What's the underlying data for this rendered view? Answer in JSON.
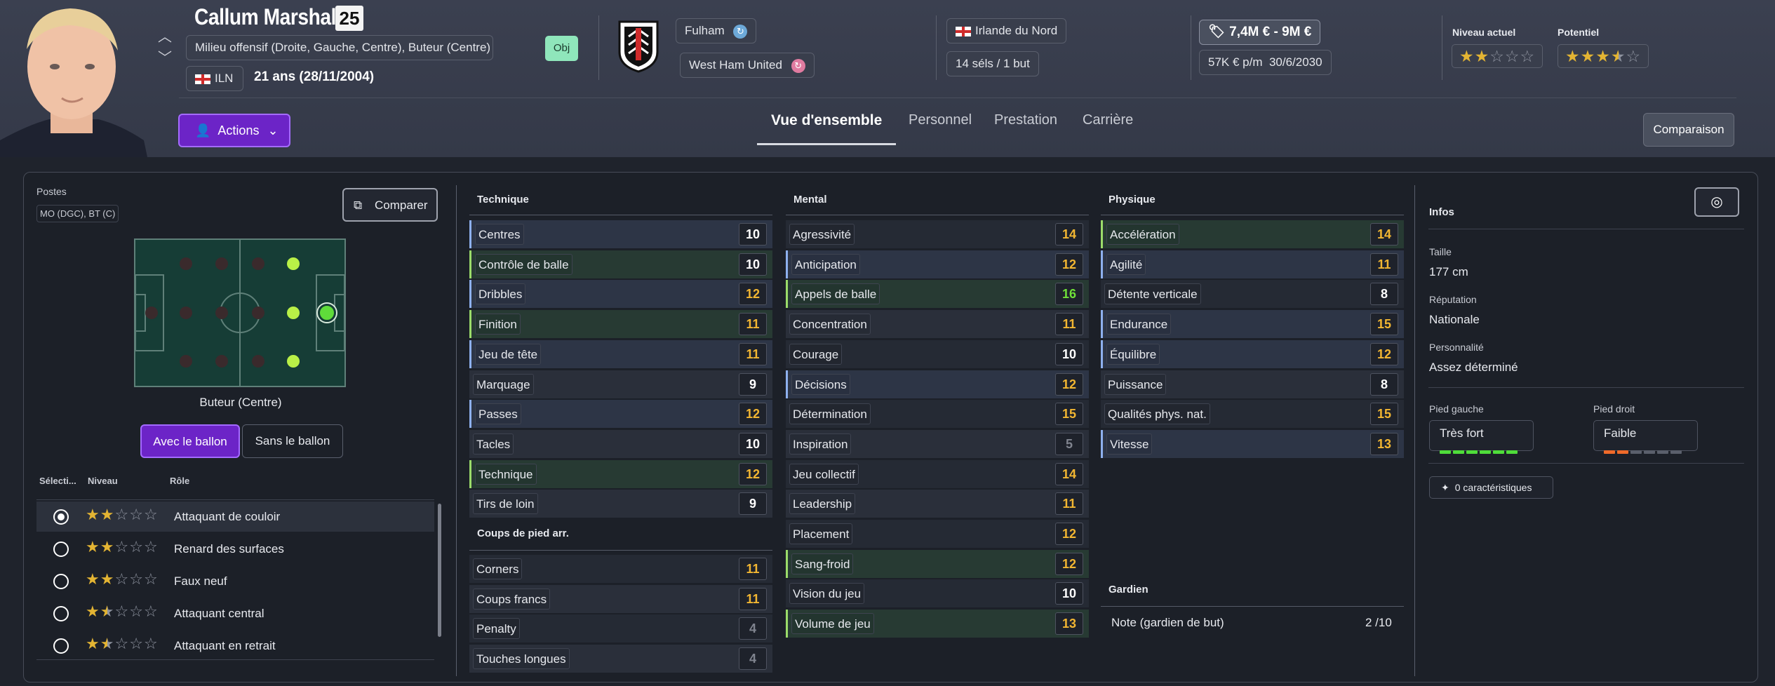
{
  "player": {
    "name": "Callum Marshall",
    "number": "25",
    "positions_label": "Milieu offensif (Droite, Gauche, Centre), Buteur (Centre)",
    "nation_code": "ILN",
    "age": "21 ans (28/11/2004)",
    "objective": "Obj"
  },
  "club": {
    "current": "Fulham",
    "loan": "West Ham United"
  },
  "nation": {
    "name": "Irlande du Nord",
    "caps": "14 séls / 1 but"
  },
  "contract": {
    "value": "7,4M € - 9M €",
    "wage": "57K € p/m",
    "expiry": "30/6/2030"
  },
  "ability": {
    "current_label": "Niveau actuel",
    "potential_label": "Potentiel",
    "current_stars": 2,
    "potential_stars": 3.5
  },
  "actions": {
    "label": "Actions"
  },
  "tabs": [
    "Vue d'ensemble",
    "Personnel",
    "Prestation",
    "Carrière"
  ],
  "comparison": "Comparaison",
  "positions": {
    "title": "Postes",
    "value": "MO (DGC), BT (C)",
    "compare": "Comparer",
    "selected_position": "Buteur (Centre)",
    "with_ball": "Avec le ballon",
    "without_ball": "Sans le ballon"
  },
  "roles": {
    "headers": {
      "select": "Sélecti...",
      "level": "Niveau",
      "role": "Rôle"
    },
    "items": [
      {
        "name": "Attaquant de couloir",
        "stars": 2,
        "selected": true
      },
      {
        "name": "Renard des surfaces",
        "stars": 2,
        "selected": false
      },
      {
        "name": "Faux neuf",
        "stars": 2,
        "selected": false
      },
      {
        "name": "Attaquant central",
        "stars": 1.5,
        "selected": false
      },
      {
        "name": "Attaquant en retrait",
        "stars": 1.5,
        "selected": false
      }
    ]
  },
  "technique": {
    "title": "Technique",
    "items": [
      {
        "name": "Centres",
        "value": "10",
        "style": "key",
        "color": "w"
      },
      {
        "name": "Contrôle de balle",
        "value": "10",
        "style": "top",
        "color": "w"
      },
      {
        "name": "Dribbles",
        "value": "12",
        "style": "key",
        "color": "y"
      },
      {
        "name": "Finition",
        "value": "11",
        "style": "top",
        "color": "y"
      },
      {
        "name": "Jeu de tête",
        "value": "11",
        "style": "key",
        "color": "y"
      },
      {
        "name": "Marquage",
        "value": "9",
        "style": "n",
        "color": "w"
      },
      {
        "name": "Passes",
        "value": "12",
        "style": "key",
        "color": "y"
      },
      {
        "name": "Tacles",
        "value": "10",
        "style": "n",
        "color": "w"
      },
      {
        "name": "Technique",
        "value": "12",
        "style": "top",
        "color": "y"
      },
      {
        "name": "Tirs de loin",
        "value": "9",
        "style": "n",
        "color": "w"
      }
    ]
  },
  "setpieces": {
    "title": "Coups de pied arr.",
    "items": [
      {
        "name": "Corners",
        "value": "11",
        "style": "n",
        "color": "y"
      },
      {
        "name": "Coups francs",
        "value": "11",
        "style": "n",
        "color": "y"
      },
      {
        "name": "Penalty",
        "value": "4",
        "style": "n",
        "color": "d"
      },
      {
        "name": "Touches longues",
        "value": "4",
        "style": "n",
        "color": "d"
      }
    ]
  },
  "mental": {
    "title": "Mental",
    "items": [
      {
        "name": "Agressivité",
        "value": "14",
        "style": "n",
        "color": "y"
      },
      {
        "name": "Anticipation",
        "value": "12",
        "style": "key",
        "color": "y"
      },
      {
        "name": "Appels de balle",
        "value": "16",
        "style": "top",
        "color": "g"
      },
      {
        "name": "Concentration",
        "value": "11",
        "style": "n",
        "color": "y"
      },
      {
        "name": "Courage",
        "value": "10",
        "style": "n",
        "color": "w"
      },
      {
        "name": "Décisions",
        "value": "12",
        "style": "key",
        "color": "y"
      },
      {
        "name": "Détermination",
        "value": "15",
        "style": "n",
        "color": "y"
      },
      {
        "name": "Inspiration",
        "value": "5",
        "style": "n",
        "color": "d"
      },
      {
        "name": "Jeu collectif",
        "value": "14",
        "style": "n",
        "color": "y"
      },
      {
        "name": "Leadership",
        "value": "11",
        "style": "n",
        "color": "y"
      },
      {
        "name": "Placement",
        "value": "12",
        "style": "n",
        "color": "y"
      },
      {
        "name": "Sang-froid",
        "value": "12",
        "style": "top",
        "color": "y"
      },
      {
        "name": "Vision du jeu",
        "value": "10",
        "style": "n",
        "color": "w"
      },
      {
        "name": "Volume de jeu",
        "value": "13",
        "style": "top",
        "color": "y"
      }
    ]
  },
  "physical": {
    "title": "Physique",
    "items": [
      {
        "name": "Accélération",
        "value": "14",
        "style": "top",
        "color": "y"
      },
      {
        "name": "Agilité",
        "value": "11",
        "style": "key",
        "color": "y"
      },
      {
        "name": "Détente verticale",
        "value": "8",
        "style": "n",
        "color": "w"
      },
      {
        "name": "Endurance",
        "value": "15",
        "style": "key",
        "color": "y"
      },
      {
        "name": "Équilibre",
        "value": "12",
        "style": "key",
        "color": "y"
      },
      {
        "name": "Puissance",
        "value": "8",
        "style": "n",
        "color": "w"
      },
      {
        "name": "Qualités phys. nat.",
        "value": "15",
        "style": "n",
        "color": "y"
      },
      {
        "name": "Vitesse",
        "value": "13",
        "style": "key",
        "color": "y"
      }
    ]
  },
  "goalkeeper": {
    "title": "Gardien",
    "label": "Note (gardien de but)",
    "value": "2 /10"
  },
  "info": {
    "title": "Infos",
    "height_label": "Taille",
    "height": "177 cm",
    "reputation_label": "Réputation",
    "reputation": "Nationale",
    "personality_label": "Personnalité",
    "personality": "Assez déterminé",
    "left_foot_label": "Pied gauche",
    "left_foot": "Très fort",
    "left_foot_level": 6,
    "right_foot_label": "Pied droit",
    "right_foot": "Faible",
    "right_foot_level": 2,
    "traits": "0 caractéristiques"
  },
  "colors": {
    "accent": "#6c24c7",
    "star": "#e3b433",
    "green": "#6fe038",
    "yellow": "#f2b632"
  }
}
